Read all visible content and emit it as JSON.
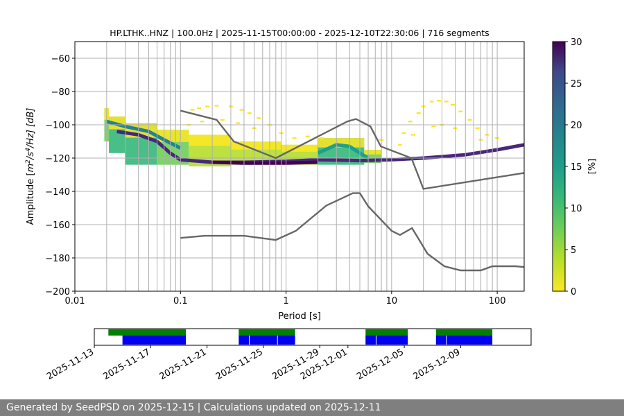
{
  "chart_data": [
    {
      "type": "heatmap",
      "title": "HP.LTHK..HNZ | 100.0Hz | 2025-11-15T00:00:00 - 2025-12-10T22:30:06 | 716 segments",
      "xlabel": "Period [s]",
      "ylabel_parts": {
        "pre": "Amplitude [",
        "m": "m",
        "e1": "2",
        "s": "/s",
        "e2": "4",
        "post": "/Hz] [dB]"
      },
      "x_scale": "log",
      "xlim": [
        0.01,
        180
      ],
      "ylim": [
        -200,
        -50
      ],
      "x_ticks": [
        {
          "value": 0.01,
          "label": "0.01"
        },
        {
          "value": 0.1,
          "label": "0.1"
        },
        {
          "value": 1,
          "label": "1"
        },
        {
          "value": 10,
          "label": "10"
        },
        {
          "value": 100,
          "label": "100"
        }
      ],
      "y_ticks": [
        {
          "value": -60,
          "label": "−60"
        },
        {
          "value": -80,
          "label": "−80"
        },
        {
          "value": -100,
          "label": "−100"
        },
        {
          "value": -120,
          "label": "−120"
        },
        {
          "value": -140,
          "label": "−140"
        },
        {
          "value": -160,
          "label": "−160"
        },
        {
          "value": -180,
          "label": "−180"
        },
        {
          "value": -200,
          "label": "−200"
        }
      ],
      "vertical_grid_periods": [
        0.02,
        0.03,
        0.04,
        0.05,
        0.06,
        0.07,
        0.08,
        0.09,
        0.1,
        0.2,
        0.3,
        0.4,
        0.5,
        0.6,
        0.7,
        0.8,
        0.9,
        1,
        2,
        3,
        4,
        5,
        6,
        7,
        8,
        9,
        10,
        20,
        30,
        40,
        50,
        60,
        70,
        80,
        90,
        100
      ],
      "horizontal_grid": true,
      "colorbar": {
        "label": "[%]",
        "range": [
          0,
          30
        ],
        "ticks": [
          {
            "value": 0,
            "label": "0"
          },
          {
            "value": 5,
            "label": "5"
          },
          {
            "value": 10,
            "label": "10"
          },
          {
            "value": 15,
            "label": "15"
          },
          {
            "value": 20,
            "label": "20"
          },
          {
            "value": 25,
            "label": "25"
          },
          {
            "value": 30,
            "label": "30"
          }
        ]
      },
      "noise_model_high": [
        [
          0.1,
          -91.5
        ],
        [
          0.22,
          -97
        ],
        [
          0.32,
          -110
        ],
        [
          0.8,
          -120
        ],
        [
          3.8,
          -98
        ],
        [
          4.6,
          -96.5
        ],
        [
          6.3,
          -101
        ],
        [
          7.9,
          -113
        ],
        [
          15.4,
          -120
        ],
        [
          20,
          -138.5
        ],
        [
          354,
          -126
        ]
      ],
      "noise_model_low": [
        [
          0.1,
          -168
        ],
        [
          0.17,
          -166.7
        ],
        [
          0.4,
          -166.7
        ],
        [
          0.8,
          -169.2
        ],
        [
          1.24,
          -163.7
        ],
        [
          2.4,
          -148.6
        ],
        [
          4.3,
          -141.1
        ],
        [
          5,
          -141.1
        ],
        [
          6,
          -149
        ],
        [
          10,
          -163.7
        ],
        [
          12,
          -166.2
        ],
        [
          15.6,
          -162.1
        ],
        [
          21.9,
          -177.5
        ],
        [
          31.6,
          -185
        ],
        [
          45,
          -187.5
        ],
        [
          70,
          -187.5
        ],
        [
          90,
          -185
        ],
        [
          150,
          -185
        ],
        [
          180,
          -185.5
        ]
      ],
      "psd_density_bands": [
        {
          "p0": 0.019,
          "p1": 0.021,
          "y0": -110,
          "y1": -90,
          "level": 8
        },
        {
          "p0": 0.021,
          "p1": 0.03,
          "y0": -117,
          "y1": -95,
          "level": 10
        },
        {
          "p0": 0.03,
          "p1": 0.06,
          "y0": -124,
          "y1": -99,
          "level": 9
        },
        {
          "p0": 0.06,
          "p1": 0.12,
          "y0": -124,
          "y1": -103,
          "level": 8
        },
        {
          "p0": 0.12,
          "p1": 0.3,
          "y0": -125,
          "y1": -106,
          "level": 4
        },
        {
          "p0": 0.3,
          "p1": 0.9,
          "y0": -124,
          "y1": -110,
          "level": 3
        },
        {
          "p0": 0.9,
          "p1": 2.0,
          "y0": -124,
          "y1": -112,
          "level": 4
        },
        {
          "p0": 2.0,
          "p1": 5.5,
          "y0": -124,
          "y1": -108,
          "level": 10
        },
        {
          "p0": 5.5,
          "p1": 8.0,
          "y0": -123,
          "y1": -115,
          "level": 6
        }
      ],
      "psd_density_lines": [
        {
          "points": [
            [
              0.025,
              -104
            ],
            [
              0.04,
              -106
            ],
            [
              0.06,
              -110
            ],
            [
              0.08,
              -117
            ],
            [
              0.1,
              -121
            ],
            [
              0.2,
              -122.5
            ],
            [
              0.4,
              -122.5
            ],
            [
              1,
              -122
            ],
            [
              2,
              -121
            ],
            [
              5,
              -121.5
            ],
            [
              10,
              -121
            ],
            [
              20,
              -120
            ],
            [
              50,
              -118
            ],
            [
              100,
              -115
            ],
            [
              180,
              -112
            ]
          ],
          "level": 26
        },
        {
          "points": [
            [
              0.2,
              -122.5
            ],
            [
              0.4,
              -123
            ],
            [
              1,
              -123
            ],
            [
              2,
              -122.5
            ]
          ],
          "level": 30
        },
        {
          "points": [
            [
              2,
              -117
            ],
            [
              3,
              -112
            ],
            [
              4,
              -113
            ],
            [
              5,
              -117
            ],
            [
              6,
              -120
            ]
          ],
          "level": 14
        },
        {
          "points": [
            [
              0.02,
              -98
            ],
            [
              0.03,
              -101
            ],
            [
              0.05,
              -104
            ],
            [
              0.07,
              -109
            ],
            [
              0.1,
              -114
            ]
          ],
          "level": 15
        }
      ],
      "psd_sparse_points": [
        [
          0.13,
          -91
        ],
        [
          0.15,
          -90
        ],
        [
          0.18,
          -89
        ],
        [
          0.22,
          -88.5
        ],
        [
          0.3,
          -89
        ],
        [
          0.38,
          -91
        ],
        [
          0.45,
          -93
        ],
        [
          0.55,
          -96
        ],
        [
          0.7,
          -100
        ],
        [
          0.12,
          -100
        ],
        [
          0.16,
          -98
        ],
        [
          0.25,
          -97
        ],
        [
          0.35,
          -99
        ],
        [
          0.5,
          -102
        ],
        [
          1.2,
          -108
        ],
        [
          1.6,
          -107
        ],
        [
          2.2,
          -108
        ],
        [
          0.9,
          -105
        ],
        [
          13,
          -105
        ],
        [
          15,
          -98
        ],
        [
          18,
          -93
        ],
        [
          20,
          -89
        ],
        [
          24,
          -86
        ],
        [
          28,
          -85.5
        ],
        [
          33,
          -86
        ],
        [
          38,
          -88
        ],
        [
          45,
          -92
        ],
        [
          55,
          -97
        ],
        [
          65,
          -102
        ],
        [
          80,
          -106
        ],
        [
          100,
          -108
        ],
        [
          12,
          -112
        ],
        [
          16,
          -106
        ],
        [
          25,
          -101
        ],
        [
          30,
          -100
        ],
        [
          40,
          -102
        ],
        [
          70,
          -109
        ],
        [
          8,
          -109
        ]
      ],
      "sparse_level": 1
    },
    {
      "type": "timeline",
      "x_ticks": [
        {
          "value": "2025-11-13",
          "label": "2025-11-13"
        },
        {
          "value": "2025-11-17",
          "label": "2025-11-17"
        },
        {
          "value": "2025-11-21",
          "label": "2025-11-21"
        },
        {
          "value": "2025-11-25",
          "label": "2025-11-25"
        },
        {
          "value": "2025-11-29",
          "label": "2025-11-29"
        },
        {
          "value": "2025-12-01",
          "label": "2025-12-01"
        },
        {
          "value": "2025-12-05",
          "label": "2025-12-05"
        },
        {
          "value": "2025-12-09",
          "label": "2025-12-09"
        }
      ],
      "xlim": [
        "2025-11-13",
        "2025-12-14"
      ],
      "green_spans": [
        [
          "2025-11-14T00:00",
          "2025-11-19T12:00"
        ],
        [
          "2025-11-23T06:00",
          "2025-11-27T06:00"
        ],
        [
          "2025-12-02T06:00",
          "2025-12-05T06:00"
        ],
        [
          "2025-12-07T06:00",
          "2025-12-11T06:00"
        ]
      ],
      "blue_spans": [
        [
          "2025-11-15T00:00",
          "2025-11-19T12:00"
        ],
        [
          "2025-11-23T06:00",
          "2025-11-27T06:00"
        ],
        [
          "2025-12-02T06:00",
          "2025-12-05T06:00"
        ],
        [
          "2025-12-07T06:00",
          "2025-12-11T06:00"
        ]
      ],
      "blue_breaks": [
        "2025-11-24T00:00",
        "2025-11-26T00:00",
        "2025-12-03T00:00",
        "2025-12-08T00:00"
      ]
    }
  ],
  "footer": {
    "text": "Generated by SeedPSD on 2025-12-15 | Calculations updated on 2025-12-11"
  },
  "colors": {
    "noise_model": "#666666",
    "green_bar": "#008000",
    "blue_bar": "#0000ee",
    "grid": "#b0b0b0",
    "footer_bg": "#7f7f7f"
  }
}
